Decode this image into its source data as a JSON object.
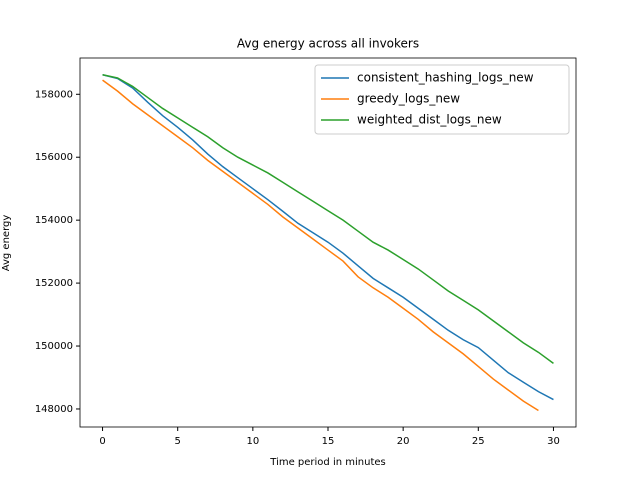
{
  "chart_data": {
    "type": "line",
    "title": "Avg energy across all invokers",
    "xlabel": "Time period in minutes",
    "ylabel": "Avg energy",
    "x": [
      0,
      1,
      2,
      3,
      4,
      5,
      6,
      7,
      8,
      9,
      10,
      11,
      12,
      13,
      14,
      15,
      16,
      17,
      18,
      19,
      20,
      21,
      22,
      23,
      24,
      25,
      26,
      27,
      28,
      29,
      30
    ],
    "series": [
      {
        "name": "consistent_hashing_logs_new",
        "color": "#1f77b4",
        "values": [
          158620,
          158500,
          158200,
          157750,
          157320,
          156950,
          156550,
          156100,
          155700,
          155350,
          155000,
          154650,
          154280,
          153900,
          153600,
          153300,
          152950,
          152550,
          152150,
          151850,
          151550,
          151200,
          150850,
          150500,
          150200,
          149950,
          149550,
          149150,
          148850,
          148550,
          148300
        ]
      },
      {
        "name": "greedy_logs_new",
        "color": "#ff7f0e",
        "values": [
          158450,
          158100,
          157700,
          157350,
          157000,
          156650,
          156300,
          155900,
          155550,
          155200,
          154850,
          154500,
          154100,
          153750,
          153400,
          153050,
          152700,
          152200,
          151850,
          151550,
          151200,
          150850,
          150450,
          150100,
          149750,
          149350,
          148950,
          148600,
          148250,
          147950,
          null
        ]
      },
      {
        "name": "weighted_dist_logs_new",
        "color": "#2ca02c",
        "values": [
          158620,
          158520,
          158250,
          157900,
          157550,
          157250,
          156950,
          156650,
          156300,
          156000,
          155750,
          155500,
          155200,
          154900,
          154600,
          154300,
          154000,
          153650,
          153300,
          153050,
          152750,
          152450,
          152100,
          151750,
          151450,
          151150,
          150800,
          150450,
          150100,
          149800,
          149450
        ]
      }
    ],
    "xlim": [
      -1.5,
      31.5
    ],
    "xticks": [
      0,
      5,
      10,
      15,
      20,
      25,
      30
    ],
    "ylim": [
      147427,
      159153
    ],
    "yticks": [
      148000,
      150000,
      152000,
      154000,
      156000,
      158000
    ],
    "grid": false,
    "legend": "upper right"
  }
}
